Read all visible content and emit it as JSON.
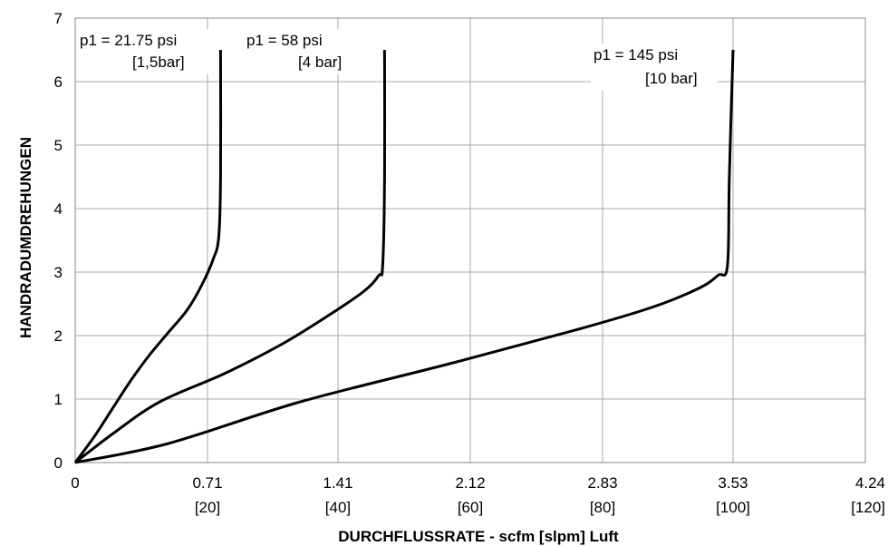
{
  "chart_data": {
    "type": "line",
    "title": "",
    "xlabel": "DURCHFLUSSRATE - scfm [slpm] Luft",
    "ylabel": "HANDRADUMDREHUNGEN",
    "xlim": [
      0,
      4.24
    ],
    "ylim": [
      0,
      7
    ],
    "grid": true,
    "x_ticks": [
      {
        "value": 0,
        "label": "0",
        "sub": ""
      },
      {
        "value": 0.71,
        "label": "0.71",
        "sub": "[20]"
      },
      {
        "value": 1.41,
        "label": "1.41",
        "sub": "[40]"
      },
      {
        "value": 2.12,
        "label": "2.12",
        "sub": "[60]"
      },
      {
        "value": 2.83,
        "label": "2.83",
        "sub": "[80]"
      },
      {
        "value": 3.53,
        "label": "3.53",
        "sub": "[100]"
      },
      {
        "value": 4.24,
        "label": "4.24",
        "sub": "[120]"
      }
    ],
    "y_ticks": [
      0,
      1,
      2,
      3,
      4,
      5,
      6,
      7
    ],
    "series": [
      {
        "label_line1": "p1 =  21.75 psi",
        "label_line2": "[1,5bar]",
        "x": [
          0,
          0.1,
          0.2,
          0.3,
          0.4,
          0.5,
          0.6,
          0.68,
          0.74,
          0.77,
          0.78,
          0.78
        ],
        "y": [
          0,
          0.4,
          0.85,
          1.3,
          1.7,
          2.05,
          2.4,
          2.8,
          3.2,
          3.55,
          4.5,
          6.5
        ]
      },
      {
        "label_line1": "p1 =  58 psi",
        "label_line2": "[4 bar]",
        "x": [
          0,
          0.2,
          0.45,
          0.8,
          1.1,
          1.35,
          1.55,
          1.63,
          1.65,
          1.66,
          1.66
        ],
        "y": [
          0,
          0.45,
          0.95,
          1.4,
          1.85,
          2.3,
          2.7,
          2.95,
          3.1,
          4.5,
          6.5
        ]
      },
      {
        "label_line1": "p1 =  145 psi",
        "label_line2": "[10 bar]",
        "x": [
          0,
          0.5,
          1.2,
          2.0,
          2.7,
          3.1,
          3.35,
          3.45,
          3.5,
          3.51,
          3.53
        ],
        "y": [
          0,
          0.3,
          0.95,
          1.55,
          2.1,
          2.45,
          2.75,
          2.95,
          3.1,
          4.5,
          6.5
        ]
      }
    ]
  }
}
